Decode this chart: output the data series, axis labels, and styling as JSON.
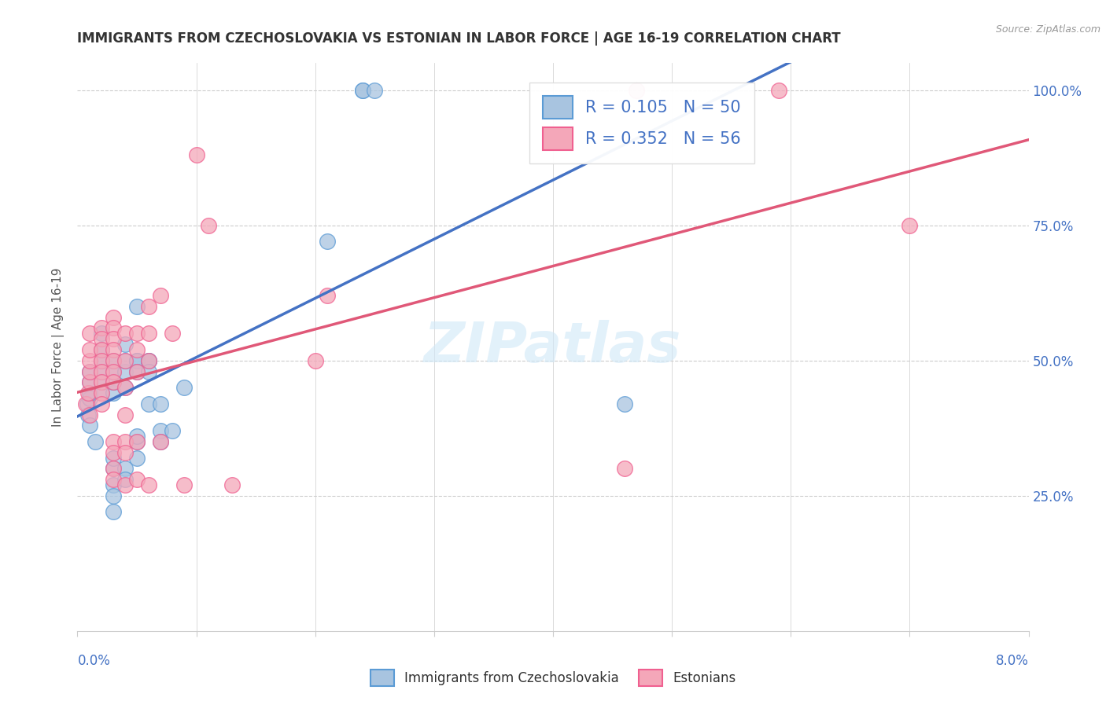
{
  "title": "IMMIGRANTS FROM CZECHOSLOVAKIA VS ESTONIAN IN LABOR FORCE | AGE 16-19 CORRELATION CHART",
  "source": "Source: ZipAtlas.com",
  "ylabel_label": "In Labor Force | Age 16-19",
  "xlim": [
    0.0,
    0.08
  ],
  "ylim": [
    0.0,
    1.05
  ],
  "blue_fill": "#a8c4e0",
  "pink_fill": "#f4a7b9",
  "blue_edge": "#5b9bd5",
  "pink_edge": "#f06090",
  "blue_line": "#4472c4",
  "pink_line": "#e05878",
  "legend_text_color": "#4472c4",
  "watermark": "ZIPatlas",
  "R_blue": 0.105,
  "N_blue": 50,
  "R_pink": 0.352,
  "N_pink": 56,
  "blue_scatter": [
    [
      0.0008,
      0.42
    ],
    [
      0.0009,
      0.4
    ],
    [
      0.001,
      0.43
    ],
    [
      0.001,
      0.44
    ],
    [
      0.001,
      0.46
    ],
    [
      0.001,
      0.48
    ],
    [
      0.001,
      0.38
    ],
    [
      0.0015,
      0.35
    ],
    [
      0.002,
      0.44
    ],
    [
      0.002,
      0.46
    ],
    [
      0.002,
      0.48
    ],
    [
      0.002,
      0.5
    ],
    [
      0.002,
      0.52
    ],
    [
      0.002,
      0.55
    ],
    [
      0.003,
      0.44
    ],
    [
      0.003,
      0.46
    ],
    [
      0.003,
      0.48
    ],
    [
      0.003,
      0.5
    ],
    [
      0.003,
      0.3
    ],
    [
      0.003,
      0.32
    ],
    [
      0.003,
      0.27
    ],
    [
      0.003,
      0.25
    ],
    [
      0.003,
      0.22
    ],
    [
      0.004,
      0.48
    ],
    [
      0.004,
      0.45
    ],
    [
      0.004,
      0.5
    ],
    [
      0.004,
      0.53
    ],
    [
      0.004,
      0.3
    ],
    [
      0.004,
      0.28
    ],
    [
      0.005,
      0.6
    ],
    [
      0.005,
      0.5
    ],
    [
      0.005,
      0.5
    ],
    [
      0.005,
      0.48
    ],
    [
      0.005,
      0.35
    ],
    [
      0.005,
      0.32
    ],
    [
      0.005,
      0.36
    ],
    [
      0.006,
      0.5
    ],
    [
      0.006,
      0.5
    ],
    [
      0.006,
      0.48
    ],
    [
      0.006,
      0.42
    ],
    [
      0.007,
      0.42
    ],
    [
      0.007,
      0.37
    ],
    [
      0.007,
      0.35
    ],
    [
      0.008,
      0.37
    ],
    [
      0.009,
      0.45
    ],
    [
      0.021,
      0.72
    ],
    [
      0.024,
      1.0
    ],
    [
      0.024,
      1.0
    ],
    [
      0.025,
      1.0
    ],
    [
      0.046,
      0.42
    ]
  ],
  "pink_scatter": [
    [
      0.0007,
      0.42
    ],
    [
      0.0009,
      0.44
    ],
    [
      0.001,
      0.46
    ],
    [
      0.001,
      0.48
    ],
    [
      0.001,
      0.5
    ],
    [
      0.001,
      0.52
    ],
    [
      0.001,
      0.55
    ],
    [
      0.001,
      0.4
    ],
    [
      0.002,
      0.56
    ],
    [
      0.002,
      0.54
    ],
    [
      0.002,
      0.52
    ],
    [
      0.002,
      0.5
    ],
    [
      0.002,
      0.48
    ],
    [
      0.002,
      0.46
    ],
    [
      0.002,
      0.44
    ],
    [
      0.002,
      0.42
    ],
    [
      0.003,
      0.58
    ],
    [
      0.003,
      0.56
    ],
    [
      0.003,
      0.54
    ],
    [
      0.003,
      0.52
    ],
    [
      0.003,
      0.5
    ],
    [
      0.003,
      0.48
    ],
    [
      0.003,
      0.46
    ],
    [
      0.003,
      0.35
    ],
    [
      0.003,
      0.33
    ],
    [
      0.003,
      0.3
    ],
    [
      0.003,
      0.28
    ],
    [
      0.004,
      0.55
    ],
    [
      0.004,
      0.5
    ],
    [
      0.004,
      0.45
    ],
    [
      0.004,
      0.4
    ],
    [
      0.004,
      0.35
    ],
    [
      0.004,
      0.33
    ],
    [
      0.004,
      0.27
    ],
    [
      0.005,
      0.55
    ],
    [
      0.005,
      0.52
    ],
    [
      0.005,
      0.48
    ],
    [
      0.005,
      0.35
    ],
    [
      0.005,
      0.28
    ],
    [
      0.006,
      0.6
    ],
    [
      0.006,
      0.55
    ],
    [
      0.006,
      0.5
    ],
    [
      0.006,
      0.27
    ],
    [
      0.007,
      0.62
    ],
    [
      0.007,
      0.35
    ],
    [
      0.008,
      0.55
    ],
    [
      0.009,
      0.27
    ],
    [
      0.01,
      0.88
    ],
    [
      0.011,
      0.75
    ],
    [
      0.013,
      0.27
    ],
    [
      0.02,
      0.5
    ],
    [
      0.021,
      0.62
    ],
    [
      0.046,
      0.3
    ],
    [
      0.047,
      1.0
    ],
    [
      0.059,
      1.0
    ],
    [
      0.07,
      0.75
    ]
  ],
  "y_ticks": [
    0.0,
    0.25,
    0.5,
    0.75,
    1.0
  ],
  "y_tick_labels": [
    "",
    "25.0%",
    "50.0%",
    "75.0%",
    "100.0%"
  ],
  "x_ticks": [
    0.0,
    0.01,
    0.02,
    0.03,
    0.04,
    0.05,
    0.06,
    0.07,
    0.08
  ],
  "grid_color": "#cccccc",
  "spine_color": "#cccccc"
}
